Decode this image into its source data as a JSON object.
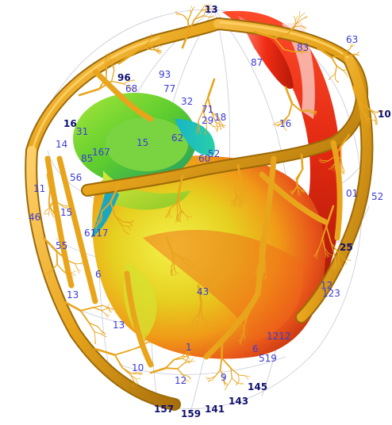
{
  "figure": {
    "colors": {
      "background": "#ffffff",
      "vessel": "#e8a51c",
      "vessel_dark": "#9c6a08",
      "vessel_light": "#ffd46a",
      "label": "#3b3bd6",
      "label_bold": "#101070",
      "grid": "#c8c8d8"
    },
    "labels": [
      {
        "text": "13",
        "bold": true
      },
      {
        "text": "63",
        "bold": false
      },
      {
        "text": "87",
        "bold": false
      },
      {
        "text": "83",
        "bold": false
      },
      {
        "text": "96",
        "bold": true
      },
      {
        "text": "68",
        "bold": false
      },
      {
        "text": "93",
        "bold": false
      },
      {
        "text": "77",
        "bold": false
      },
      {
        "text": "32",
        "bold": false
      },
      {
        "text": "71",
        "bold": false
      },
      {
        "text": "18",
        "bold": false
      },
      {
        "text": "29",
        "bold": false
      },
      {
        "text": "16",
        "bold": false
      },
      {
        "text": "10",
        "bold": true
      },
      {
        "text": "16",
        "bold": true
      },
      {
        "text": "31",
        "bold": false
      },
      {
        "text": "14",
        "bold": false
      },
      {
        "text": "167",
        "bold": false
      },
      {
        "text": "15",
        "bold": false
      },
      {
        "text": "62",
        "bold": false
      },
      {
        "text": "60",
        "bold": false
      },
      {
        "text": "52",
        "bold": false
      },
      {
        "text": "85",
        "bold": false
      },
      {
        "text": "56",
        "bold": false
      },
      {
        "text": "11",
        "bold": false
      },
      {
        "text": "46",
        "bold": false
      },
      {
        "text": "01",
        "bold": false
      },
      {
        "text": "52",
        "bold": false
      },
      {
        "text": "15",
        "bold": false
      },
      {
        "text": "6117",
        "bold": false
      },
      {
        "text": "55",
        "bold": false
      },
      {
        "text": "25",
        "bold": true
      },
      {
        "text": "6",
        "bold": false
      },
      {
        "text": "12",
        "bold": false
      },
      {
        "text": "123",
        "bold": false
      },
      {
        "text": "13",
        "bold": false
      },
      {
        "text": "43",
        "bold": false
      },
      {
        "text": "13",
        "bold": false
      },
      {
        "text": "1212",
        "bold": false
      },
      {
        "text": "6",
        "bold": false
      },
      {
        "text": "1",
        "bold": false
      },
      {
        "text": "519",
        "bold": false
      },
      {
        "text": "10",
        "bold": false
      },
      {
        "text": "9",
        "bold": false
      },
      {
        "text": "12",
        "bold": false
      },
      {
        "text": "145",
        "bold": true
      },
      {
        "text": "143",
        "bold": true
      },
      {
        "text": "157",
        "bold": true
      },
      {
        "text": "159",
        "bold": true
      },
      {
        "text": "141",
        "bold": true
      }
    ]
  }
}
